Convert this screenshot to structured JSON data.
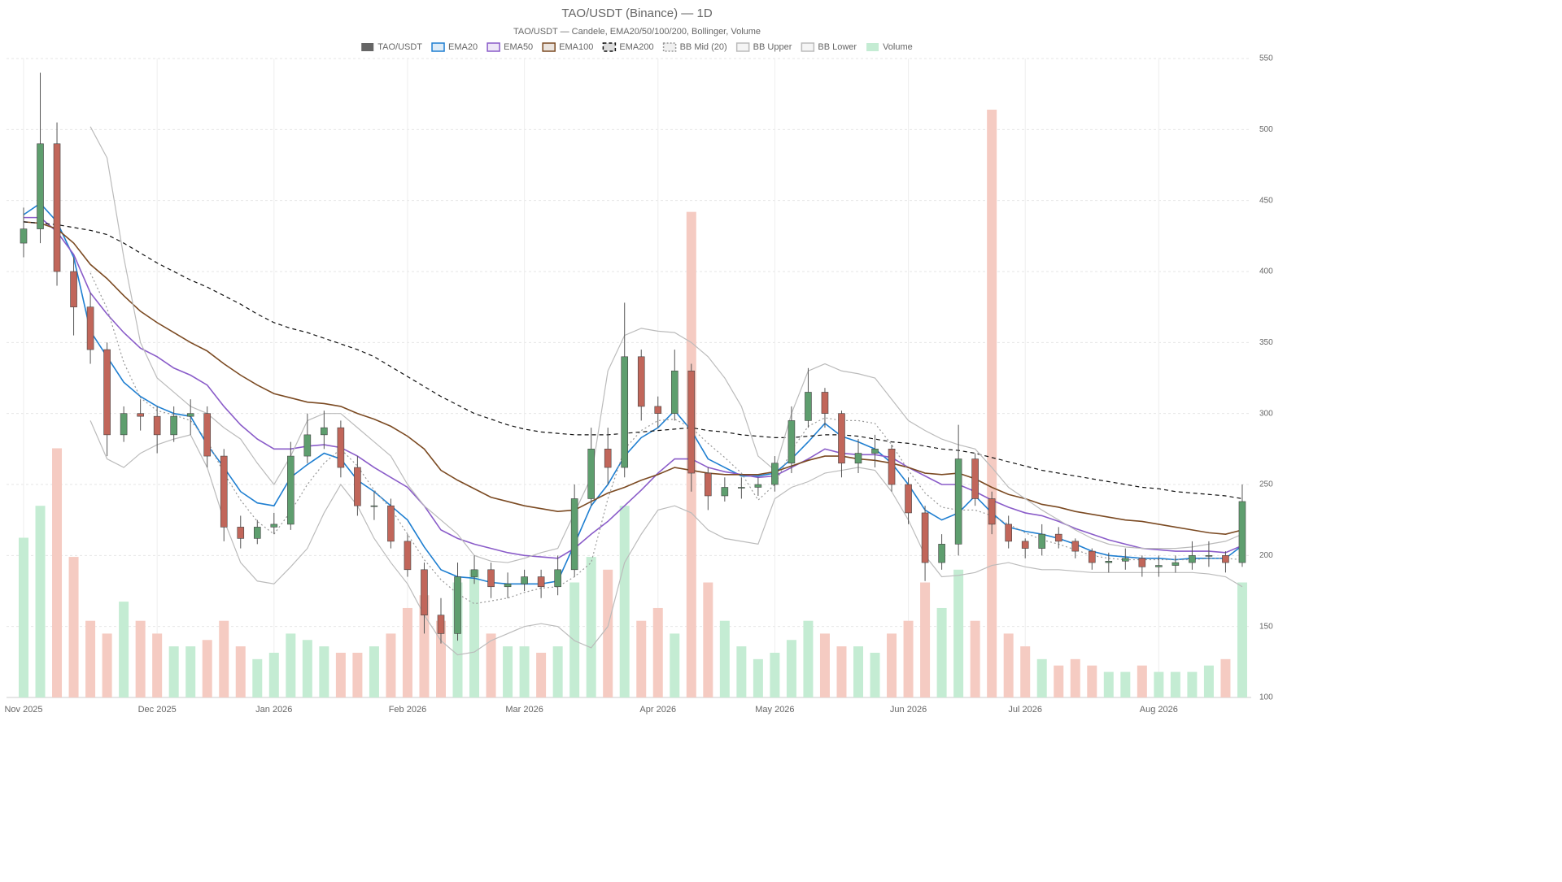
{
  "chart_data": {
    "type": "candlestick",
    "title": "TAO/USDT (Binance) — 1D",
    "subtitle": "TAO/USDT — Candele, EMA20/50/100/200, Bollinger, Volume",
    "legend": "top",
    "grid": true,
    "categories": [
      "Nov 2025",
      null,
      null,
      null,
      null,
      null,
      null,
      null,
      "Dec 2025",
      null,
      null,
      null,
      null,
      null,
      null,
      "Jan 2026",
      null,
      null,
      null,
      null,
      null,
      null,
      null,
      "Feb 2026",
      null,
      null,
      null,
      null,
      null,
      null,
      "Mar 2026",
      null,
      null,
      null,
      null,
      null,
      null,
      null,
      "Apr 2026",
      null,
      null,
      null,
      null,
      null,
      null,
      "May 2026",
      null,
      null,
      null,
      null,
      null,
      null,
      null,
      "Jun 2026",
      null,
      null,
      null,
      null,
      null,
      null,
      "Jul 2026",
      null,
      null,
      null,
      null,
      null,
      null,
      null,
      "Aug 2026",
      null,
      null,
      null,
      null,
      null
    ],
    "ylim": [
      100,
      550
    ],
    "yticks": [
      100,
      150,
      200,
      250,
      300,
      350,
      400,
      450,
      500,
      550
    ],
    "y2lim": [
      0,
      100
    ],
    "series": [
      {
        "name": "TAO/USDT",
        "type": "candlestick",
        "color": "#666666",
        "up_color": "#5e9e6e",
        "down_color": "#c1665a",
        "open": [
          420,
          430,
          490,
          400,
          375,
          345,
          285,
          300,
          298,
          285,
          298,
          300,
          270,
          220,
          212,
          220,
          222,
          270,
          285,
          290,
          262,
          235,
          235,
          210,
          190,
          158,
          145,
          185,
          190,
          178,
          180,
          185,
          178,
          190,
          240,
          275,
          262,
          340,
          305,
          300,
          330,
          258,
          242,
          248,
          248,
          250,
          265,
          295,
          315,
          300,
          265,
          272,
          275,
          250,
          230,
          195,
          208,
          268,
          240,
          222,
          210,
          205,
          215,
          210,
          203,
          195,
          196,
          198,
          192,
          193,
          195,
          200,
          200,
          195
        ],
        "high": [
          445,
          540,
          505,
          410,
          385,
          350,
          305,
          310,
          305,
          305,
          310,
          305,
          275,
          228,
          225,
          230,
          280,
          300,
          302,
          295,
          270,
          245,
          240,
          215,
          195,
          170,
          195,
          200,
          195,
          188,
          190,
          190,
          200,
          250,
          290,
          290,
          378,
          345,
          312,
          345,
          335,
          262,
          255,
          255,
          255,
          270,
          305,
          332,
          318,
          302,
          282,
          285,
          278,
          255,
          235,
          215,
          292,
          272,
          245,
          228,
          212,
          222,
          220,
          212,
          205,
          202,
          205,
          200,
          200,
          200,
          210,
          210,
          203,
          250
        ],
        "low": [
          410,
          420,
          390,
          355,
          335,
          270,
          280,
          288,
          272,
          280,
          285,
          262,
          210,
          205,
          208,
          215,
          218,
          265,
          275,
          255,
          228,
          225,
          205,
          185,
          145,
          138,
          140,
          180,
          170,
          170,
          175,
          170,
          172,
          185,
          235,
          250,
          255,
          295,
          290,
          295,
          245,
          232,
          238,
          240,
          242,
          245,
          258,
          290,
          290,
          255,
          258,
          262,
          245,
          222,
          182,
          190,
          200,
          235,
          215,
          205,
          198,
          200,
          205,
          198,
          190,
          188,
          190,
          185,
          185,
          188,
          190,
          192,
          188,
          192
        ],
        "close": [
          430,
          490,
          400,
          375,
          345,
          285,
          300,
          298,
          285,
          298,
          300,
          270,
          220,
          212,
          220,
          222,
          270,
          285,
          290,
          262,
          235,
          235,
          210,
          190,
          158,
          145,
          185,
          190,
          178,
          180,
          185,
          178,
          190,
          240,
          275,
          262,
          340,
          305,
          300,
          330,
          258,
          242,
          248,
          248,
          250,
          265,
          295,
          315,
          300,
          265,
          272,
          275,
          250,
          230,
          195,
          208,
          268,
          240,
          222,
          210,
          205,
          215,
          210,
          203,
          195,
          196,
          198,
          192,
          193,
          195,
          200,
          200,
          195,
          238
        ]
      },
      {
        "name": "EMA20",
        "type": "line",
        "color": "#1f7fd1",
        "dash": "solid",
        "values": [
          440,
          448,
          435,
          410,
          358,
          340,
          322,
          312,
          305,
          300,
          298,
          278,
          262,
          245,
          237,
          235,
          255,
          264,
          272,
          268,
          253,
          245,
          235,
          225,
          206,
          190,
          185,
          184,
          181,
          180,
          180,
          180,
          182,
          208,
          235,
          250,
          270,
          283,
          290,
          302,
          288,
          268,
          262,
          256,
          256,
          258,
          268,
          280,
          293,
          284,
          280,
          275,
          265,
          250,
          232,
          225,
          230,
          242,
          230,
          220,
          217,
          215,
          212,
          208,
          203,
          200,
          199,
          198,
          198,
          197,
          198,
          198,
          198,
          207
        ]
      },
      {
        "name": "EMA50",
        "type": "line",
        "color": "#8a5cc9",
        "dash": "solid",
        "values": [
          438,
          438,
          428,
          412,
          385,
          370,
          357,
          346,
          340,
          332,
          327,
          320,
          305,
          292,
          282,
          275,
          275,
          277,
          278,
          276,
          270,
          262,
          255,
          248,
          235,
          218,
          212,
          208,
          205,
          202,
          200,
          199,
          198,
          205,
          215,
          224,
          235,
          246,
          258,
          268,
          268,
          262,
          259,
          257,
          255,
          256,
          262,
          268,
          275,
          272,
          271,
          271,
          269,
          262,
          256,
          250,
          250,
          245,
          239,
          234,
          230,
          228,
          224,
          219,
          215,
          211,
          208,
          205,
          204,
          203,
          203,
          203,
          202,
          207
        ]
      },
      {
        "name": "EMA100",
        "type": "line",
        "color": "#7b4a22",
        "dash": "solid",
        "values": [
          435,
          434,
          430,
          420,
          405,
          395,
          383,
          372,
          364,
          357,
          350,
          344,
          335,
          327,
          320,
          314,
          311,
          308,
          307,
          305,
          300,
          296,
          291,
          284,
          275,
          260,
          253,
          247,
          241,
          238,
          235,
          233,
          231,
          232,
          238,
          244,
          248,
          253,
          257,
          262,
          260,
          258,
          257,
          257,
          257,
          259,
          263,
          267,
          270,
          270,
          268,
          267,
          265,
          262,
          258,
          257,
          258,
          254,
          248,
          243,
          240,
          236,
          234,
          231,
          229,
          227,
          225,
          224,
          222,
          220,
          218,
          216,
          215,
          218
        ]
      },
      {
        "name": "EMA200",
        "type": "line",
        "color": "#111111",
        "dash": "dashed",
        "values": [
          435,
          434,
          433,
          431,
          429,
          426,
          420,
          413,
          406,
          400,
          394,
          389,
          383,
          377,
          370,
          364,
          360,
          357,
          353,
          349,
          345,
          340,
          333,
          326,
          319,
          312,
          306,
          300,
          296,
          292,
          289,
          287,
          286,
          285,
          285,
          285,
          286,
          287,
          288,
          289,
          290,
          288,
          287,
          285,
          284,
          283,
          283,
          284,
          285,
          285,
          284,
          282,
          280,
          279,
          277,
          275,
          274,
          272,
          269,
          266,
          263,
          260,
          258,
          256,
          254,
          252,
          250,
          248,
          247,
          245,
          244,
          243,
          242,
          240
        ]
      },
      {
        "name": "BB Mid (20)",
        "type": "line",
        "color": "#999999",
        "dash": "dotted",
        "values": [
          null,
          null,
          null,
          null,
          399,
          374,
          336,
          311,
          302,
          299,
          295,
          281,
          258,
          239,
          224,
          215,
          231,
          250,
          265,
          275,
          263,
          246,
          233,
          215,
          197,
          183,
          173,
          166,
          168,
          170,
          174,
          177,
          178,
          185,
          195,
          240,
          275,
          288,
          295,
          296,
          290,
          279,
          269,
          258,
          239,
          250,
          274,
          291,
          297,
          295,
          295,
          293,
          278,
          260,
          244,
          234,
          232,
          232,
          228,
          222,
          216,
          211,
          208,
          204,
          200,
          198,
          197,
          197,
          197,
          197,
          197,
          198,
          198,
          197
        ]
      },
      {
        "name": "BB Upper",
        "type": "line",
        "color": "#bbbbbb",
        "dash": "solid",
        "values": [
          null,
          null,
          null,
          null,
          502,
          480,
          410,
          350,
          325,
          315,
          305,
          300,
          290,
          282,
          265,
          250,
          270,
          295,
          300,
          300,
          290,
          280,
          270,
          250,
          235,
          225,
          215,
          200,
          196,
          195,
          198,
          202,
          205,
          230,
          255,
          330,
          355,
          360,
          358,
          357,
          350,
          340,
          325,
          305,
          270,
          260,
          300,
          330,
          335,
          330,
          328,
          325,
          310,
          295,
          288,
          282,
          278,
          275,
          262,
          248,
          240,
          232,
          225,
          218,
          212,
          208,
          206,
          205,
          205,
          205,
          206,
          208,
          210,
          215
        ]
      },
      {
        "name": "BB Lower",
        "type": "line",
        "color": "#bbbbbb",
        "dash": "solid",
        "values": [
          null,
          null,
          null,
          null,
          295,
          268,
          262,
          272,
          278,
          282,
          285,
          262,
          225,
          195,
          182,
          180,
          192,
          205,
          230,
          250,
          235,
          212,
          195,
          180,
          158,
          140,
          130,
          132,
          140,
          145,
          150,
          152,
          150,
          140,
          135,
          150,
          195,
          215,
          232,
          235,
          230,
          218,
          212,
          210,
          208,
          240,
          248,
          252,
          258,
          260,
          262,
          260,
          245,
          225,
          200,
          185,
          186,
          188,
          193,
          195,
          192,
          190,
          190,
          189,
          188,
          188,
          188,
          188,
          188,
          188,
          188,
          187,
          185,
          178
        ]
      },
      {
        "name": "Volume",
        "type": "bar",
        "axis": "y2",
        "color": "#c4ecd3",
        "up_color": "#c4ecd3",
        "down_color": "#f5cbc2",
        "values": [
          25,
          30,
          39,
          22,
          12,
          10,
          15,
          12,
          10,
          8,
          8,
          9,
          12,
          8,
          6,
          7,
          10,
          9,
          8,
          7,
          7,
          8,
          10,
          14,
          16,
          12,
          18,
          20,
          10,
          8,
          8,
          7,
          8,
          18,
          22,
          20,
          30,
          12,
          14,
          10,
          76,
          18,
          12,
          8,
          6,
          7,
          9,
          12,
          10,
          8,
          8,
          7,
          10,
          12,
          18,
          14,
          20,
          12,
          92,
          10,
          8,
          6,
          5,
          6,
          5,
          4,
          4,
          5,
          4,
          4,
          4,
          5,
          6,
          18
        ]
      }
    ]
  }
}
